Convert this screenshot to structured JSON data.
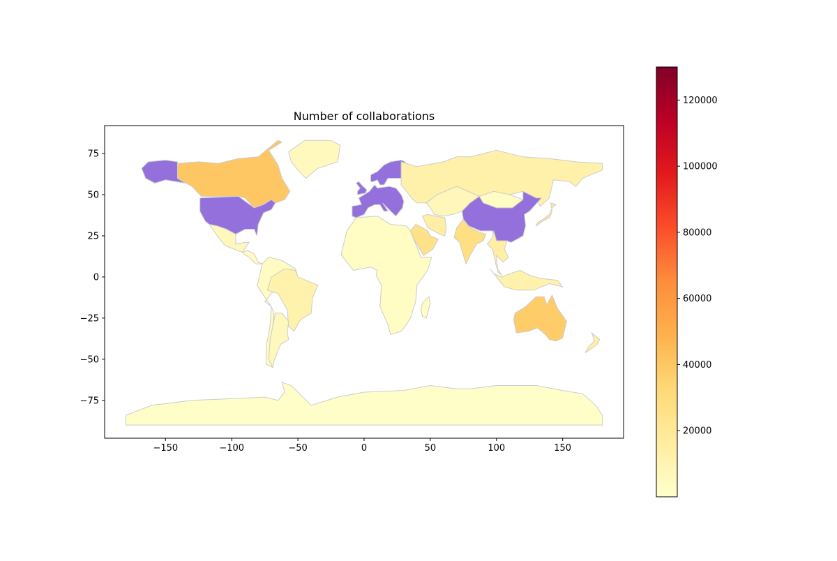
{
  "chart_data": {
    "type": "choropleth",
    "title": "Number of collaborations",
    "xlabel": "",
    "ylabel": "",
    "xlim": [
      -196,
      196
    ],
    "ylim": [
      -98,
      92
    ],
    "xticks": [
      -150,
      -100,
      -50,
      0,
      50,
      100,
      150
    ],
    "yticks": [
      -75,
      -50,
      -25,
      0,
      25,
      50,
      75
    ],
    "xtick_labels": [
      "−150",
      "−100",
      "−50",
      "0",
      "50",
      "100",
      "150"
    ],
    "ytick_labels": [
      "−75",
      "−50",
      "−25",
      "0",
      "25",
      "50",
      "75"
    ],
    "colorbar": {
      "colormap": "YlOrRd",
      "min": 0,
      "max": 130000,
      "ticks": [
        20000,
        40000,
        60000,
        80000,
        100000,
        120000
      ],
      "tick_labels": [
        "20000",
        "40000",
        "60000",
        "80000",
        "100000",
        "120000"
      ],
      "placement": "right"
    },
    "missing_color": "#9370DB",
    "border_color": "#cccccc",
    "regions": [
      {
        "name": "United States",
        "value": null
      },
      {
        "name": "Alaska",
        "value": null
      },
      {
        "name": "Canada",
        "value": 40000
      },
      {
        "name": "Greenland",
        "value": 5000
      },
      {
        "name": "Mexico",
        "value": 6000
      },
      {
        "name": "Central America",
        "value": 2500
      },
      {
        "name": "Brazil",
        "value": 12000
      },
      {
        "name": "Argentina",
        "value": 6000
      },
      {
        "name": "Chile",
        "value": 4000
      },
      {
        "name": "Northern South America",
        "value": 3500
      },
      {
        "name": "Europe",
        "value": null
      },
      {
        "name": "Scandinavia",
        "value": null
      },
      {
        "name": "Russia",
        "value": 13000
      },
      {
        "name": "China",
        "value": null
      },
      {
        "name": "Japan",
        "value": 20000
      },
      {
        "name": "India",
        "value": 28000
      },
      {
        "name": "Saudi Arabia",
        "value": 25000
      },
      {
        "name": "Iran",
        "value": 15000
      },
      {
        "name": "Central Asia",
        "value": 7000
      },
      {
        "name": "Mongolia",
        "value": 3000
      },
      {
        "name": "Southeast Asia",
        "value": 15000
      },
      {
        "name": "Indonesia",
        "value": 12000
      },
      {
        "name": "Australia",
        "value": 38000
      },
      {
        "name": "New Zealand",
        "value": 14000
      },
      {
        "name": "Africa",
        "value": 3000
      },
      {
        "name": "Madagascar",
        "value": 2500
      },
      {
        "name": "Antarctica",
        "value": 1000
      }
    ]
  }
}
